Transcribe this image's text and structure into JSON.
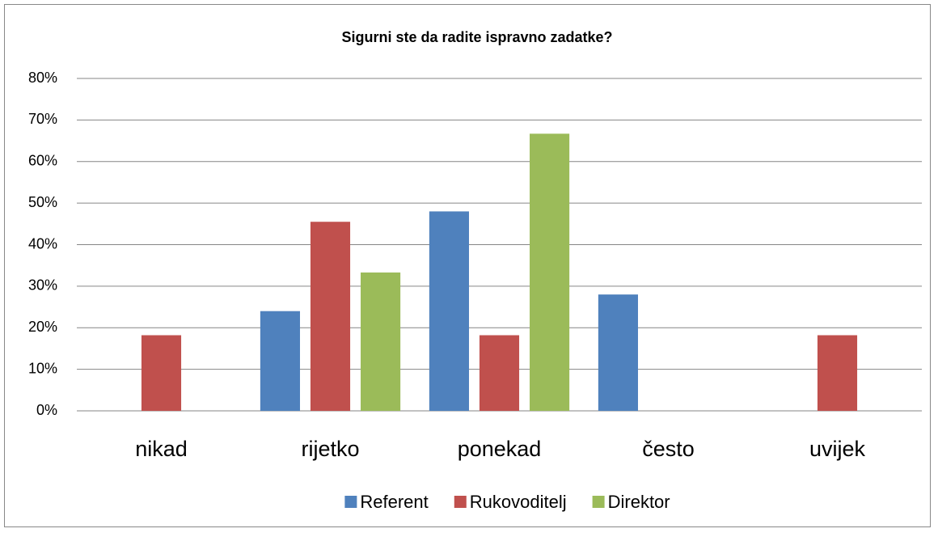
{
  "chart_data": {
    "type": "bar",
    "title": "Sigurni ste da radite ispravno zadatke?",
    "categories": [
      "nikad",
      "rijetko",
      "ponekad",
      "često",
      "uvijek"
    ],
    "series": [
      {
        "name": "Referent",
        "color": "#4f81bd",
        "values": [
          0,
          24,
          48,
          28,
          0
        ]
      },
      {
        "name": "Rukovoditelj",
        "color": "#c0504d",
        "values": [
          18.2,
          45.5,
          18.2,
          0,
          18.2
        ]
      },
      {
        "name": "Direktor",
        "color": "#9bbb59",
        "values": [
          0,
          33.3,
          66.7,
          0,
          0
        ]
      }
    ],
    "ylim": [
      0,
      80
    ],
    "yticks": [
      {
        "value": 0,
        "label": "0%"
      },
      {
        "value": 10,
        "label": "10%"
      },
      {
        "value": 20,
        "label": "20%"
      },
      {
        "value": 30,
        "label": "30%"
      },
      {
        "value": 40,
        "label": "40%"
      },
      {
        "value": 50,
        "label": "50%"
      },
      {
        "value": 60,
        "label": "60%"
      },
      {
        "value": 70,
        "label": "70%"
      },
      {
        "value": 80,
        "label": "80%"
      }
    ],
    "grid": true,
    "legend": "bottom"
  }
}
